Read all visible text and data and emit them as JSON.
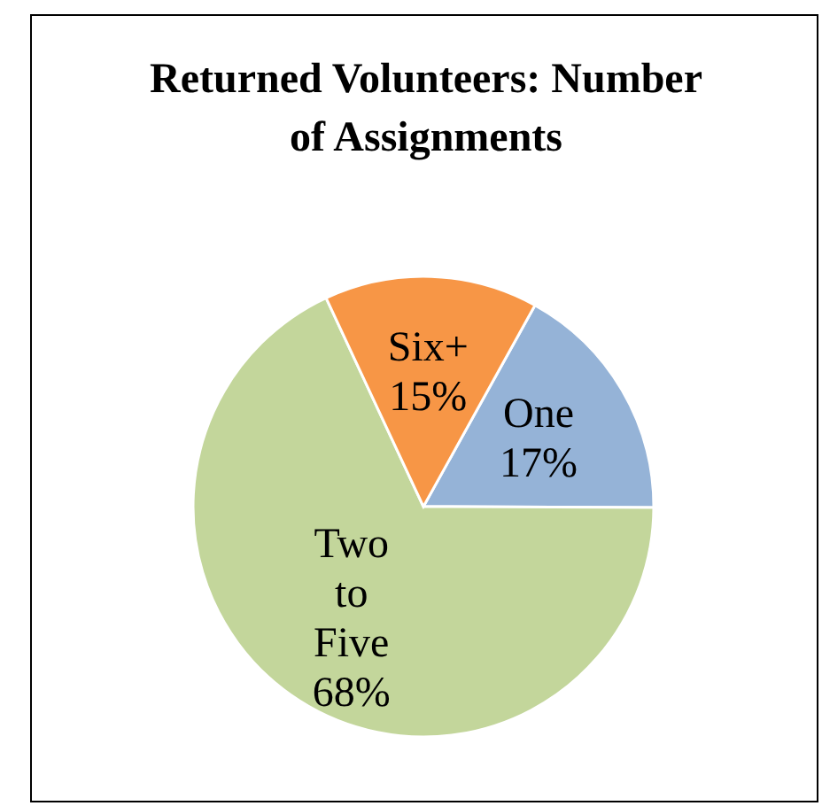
{
  "chart_data": {
    "type": "pie",
    "title": "Returned Volunteers: Number of Assignments",
    "categories": [
      "One",
      "Two to Five",
      "Six+"
    ],
    "values": [
      17,
      68,
      15
    ],
    "value_labels": [
      "17%",
      "68%",
      "15%"
    ],
    "colors": [
      "#95b3d7",
      "#c3d69b",
      "#f79646"
    ],
    "legend": false
  }
}
